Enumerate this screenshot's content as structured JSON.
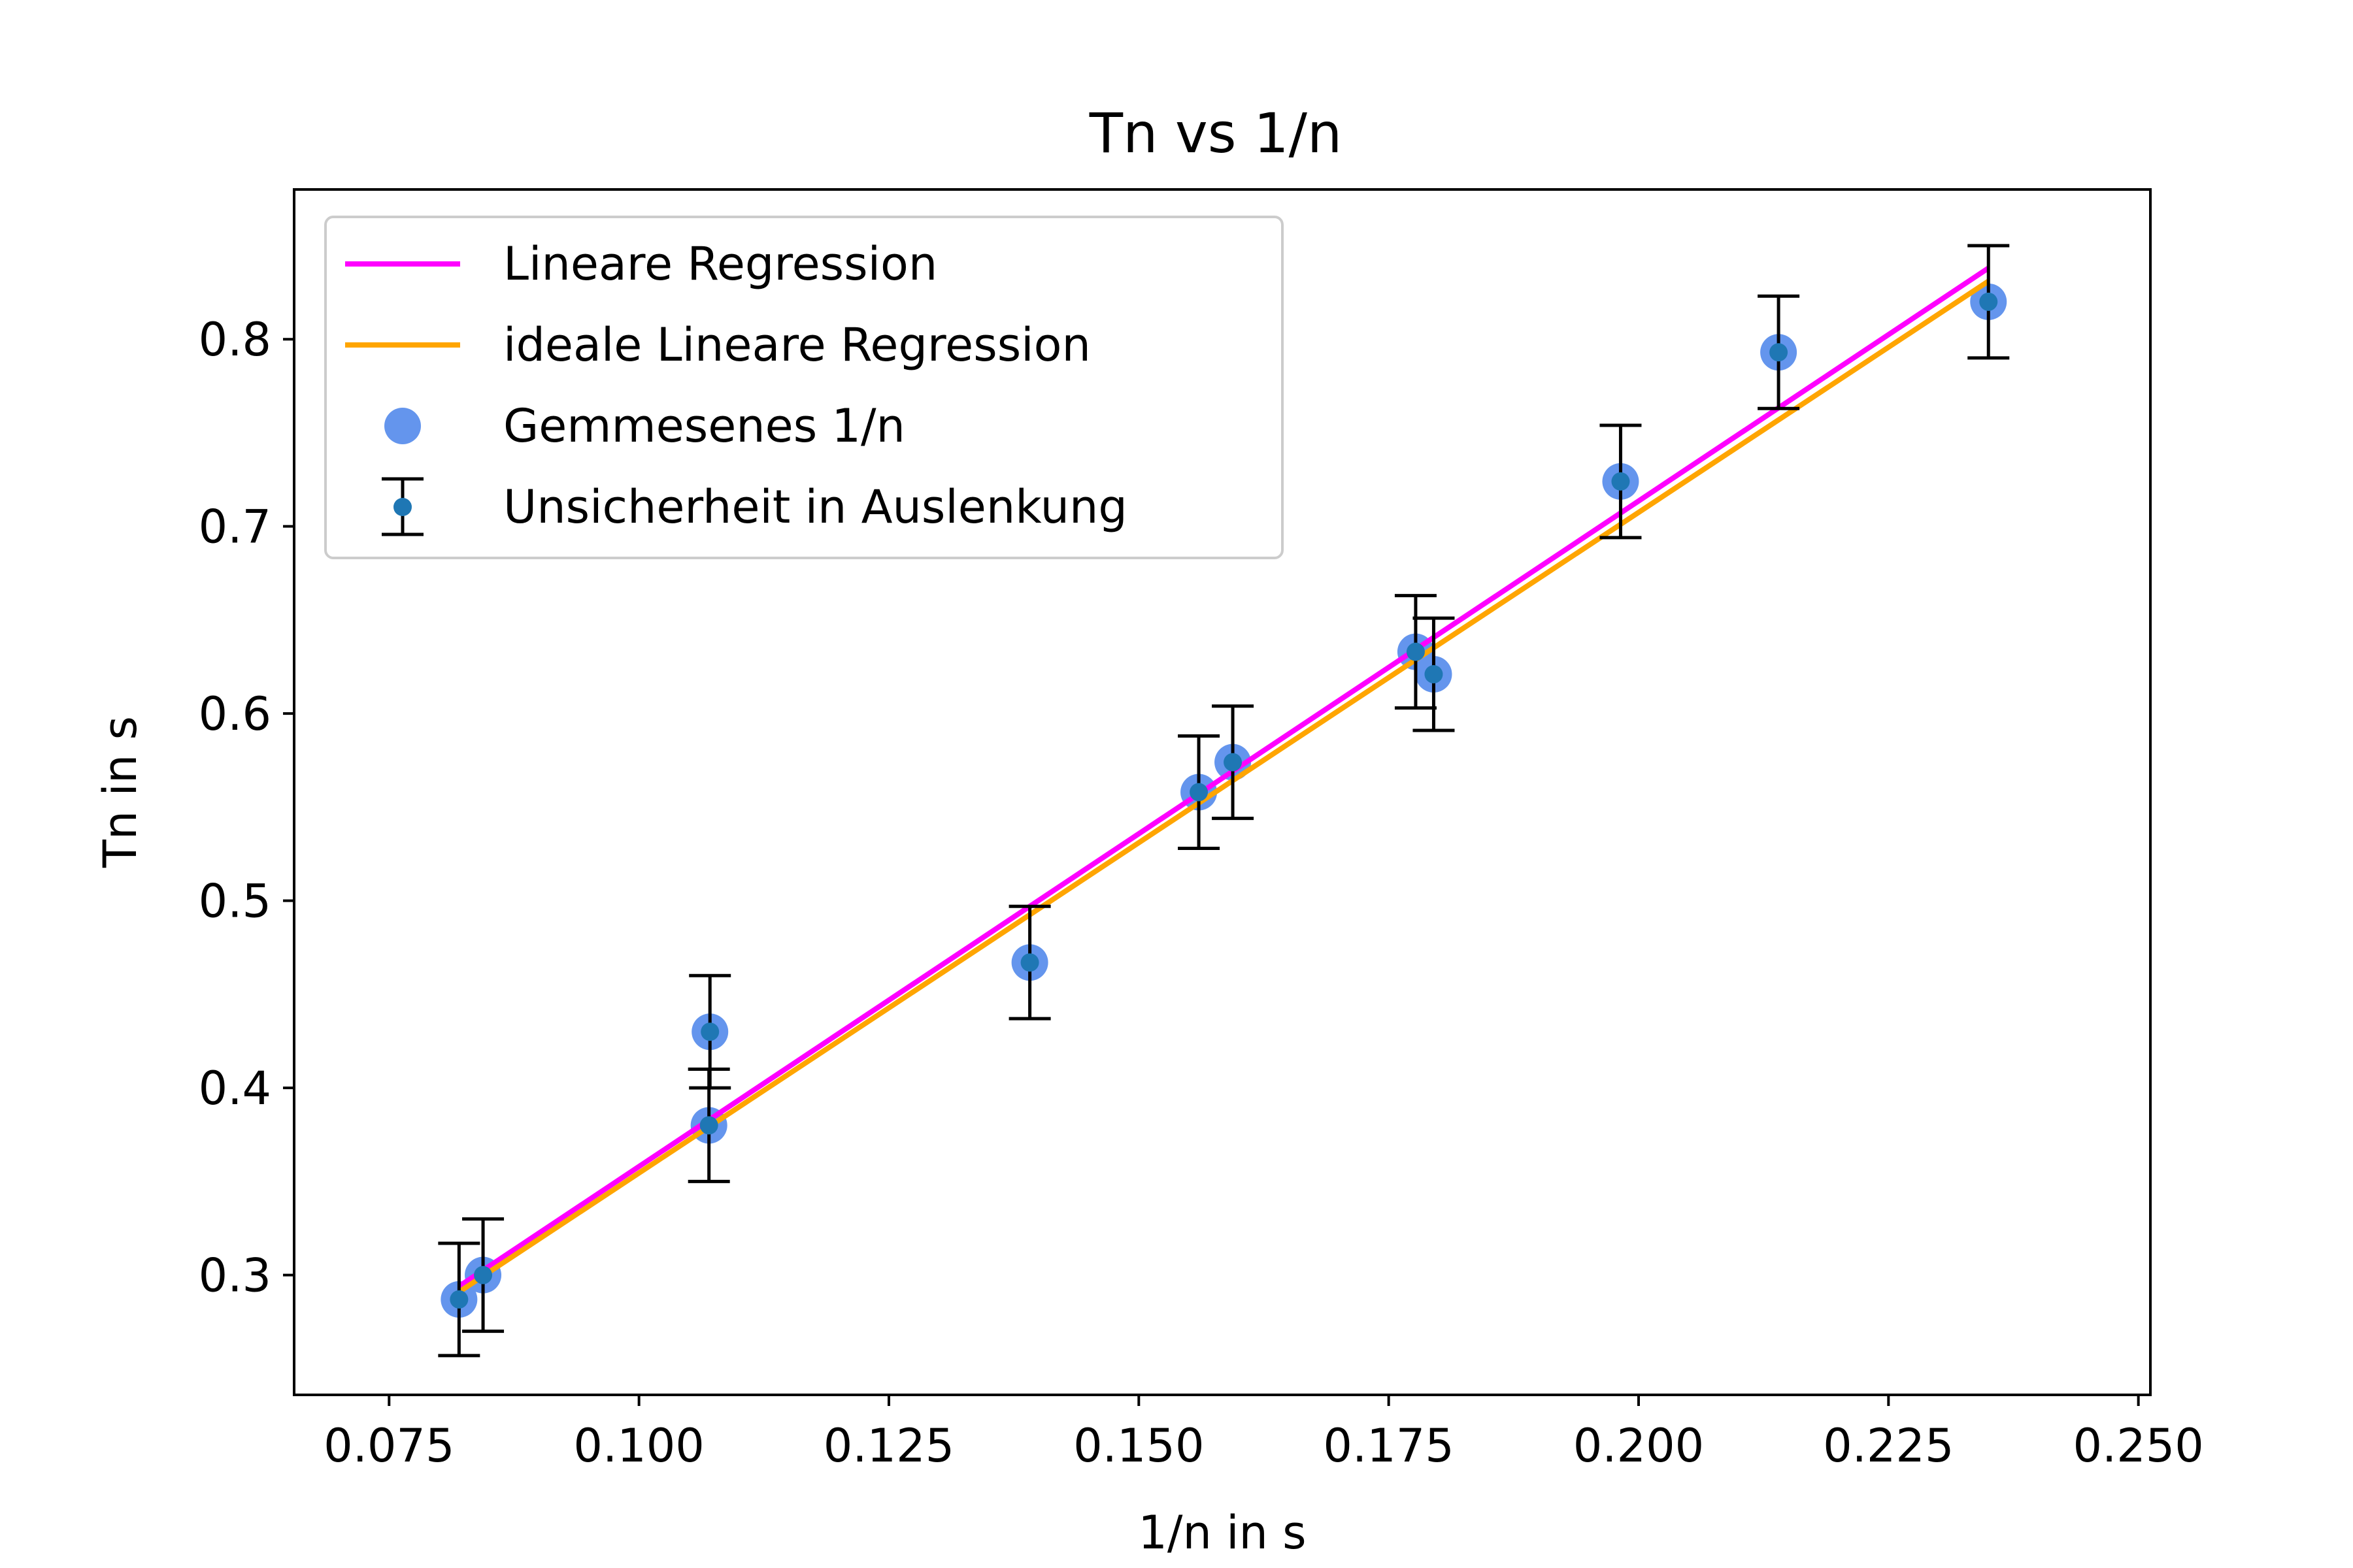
{
  "chart_data": {
    "type": "scatter",
    "title": "Tn vs 1/n",
    "xlabel": "1/n in s",
    "ylabel": "Tn in s",
    "xlim": [
      0.0655,
      0.2512
    ],
    "ylim": [
      0.236,
      0.88
    ],
    "xticks": [
      0.075,
      0.1,
      0.125,
      0.15,
      0.175,
      0.2,
      0.225,
      0.25
    ],
    "xtick_labels": [
      "0.075",
      "0.100",
      "0.125",
      "0.150",
      "0.175",
      "0.200",
      "0.225",
      "0.250"
    ],
    "yticks": [
      0.3,
      0.4,
      0.5,
      0.6,
      0.7,
      0.8
    ],
    "ytick_labels": [
      "0.3",
      "0.4",
      "0.5",
      "0.6",
      "0.7",
      "0.8"
    ],
    "grid": false,
    "legend_position": "top-left",
    "points": {
      "name": "Gemmesenes 1/n",
      "color": "#6495ED",
      "x": [
        0.082,
        0.0844,
        0.107,
        0.1071,
        0.1391,
        0.156,
        0.1594,
        0.1777,
        0.1795,
        0.1982,
        0.214,
        0.235
      ],
      "y": [
        0.287,
        0.3,
        0.38,
        0.43,
        0.467,
        0.558,
        0.574,
        0.633,
        0.621,
        0.724,
        0.793,
        0.82
      ]
    },
    "error_bars": {
      "name": "Unsicherheit in Auslenkung",
      "color": "#000000",
      "marker_color": "#1f77b4",
      "yerr": 0.03
    },
    "lines": [
      {
        "name": "Lineare Regression",
        "color": "#FF00FF",
        "x": [
          0.082,
          0.235
        ],
        "y": [
          0.294,
          0.838
        ]
      },
      {
        "name": "ideale Lineare Regression",
        "color": "#FFA500",
        "x": [
          0.082,
          0.235
        ],
        "y": [
          0.291,
          0.831
        ]
      }
    ]
  }
}
